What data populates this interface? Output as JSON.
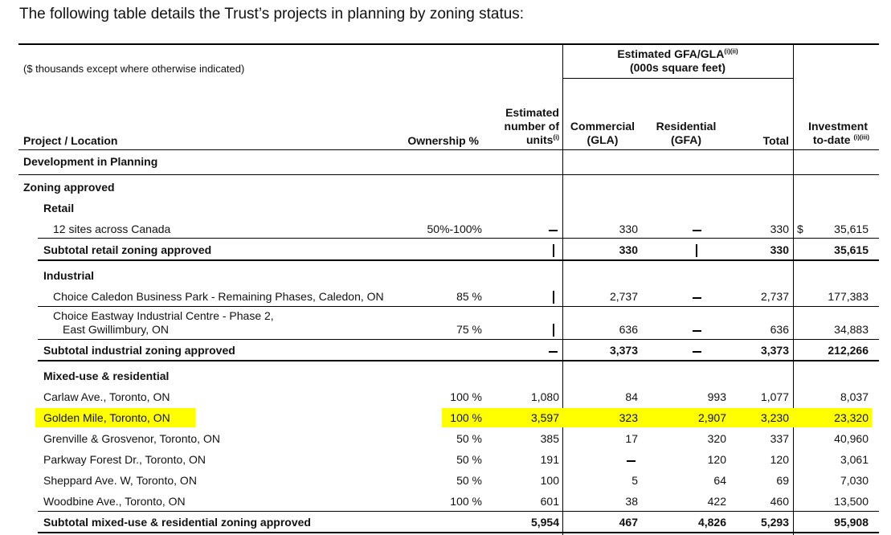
{
  "intro": "The following table details the Trust’s projects in planning by zoning status:",
  "note": "($ thousands except where otherwise indicated)",
  "gfa_header": {
    "line1": "Estimated GFA/GLA",
    "sup": "(i)(ii)",
    "line2": "(000s square feet)"
  },
  "columns": {
    "project": "Project / Location",
    "ownership": "Ownership %",
    "units_1": "Estimated",
    "units_2": "number of",
    "units_3": "units",
    "units_sup": "(i)",
    "commercial_1": "Commercial",
    "commercial_2": "(GLA)",
    "residential_1": "Residential",
    "residential_2": "(GFA)",
    "total": "Total",
    "investment_1": "Investment",
    "investment_2": "to-date",
    "investment_sup": "(i)(iii)"
  },
  "sections": {
    "development": "Development in Planning",
    "zoning": "Zoning approved",
    "retail": "Retail",
    "industrial": "Industrial",
    "mixed": "Mixed-use & residential"
  },
  "currency": "$",
  "retail_rows": [
    {
      "name": "12 sites across Canada",
      "own": "50%-100%",
      "units": "",
      "com": "330",
      "res": "",
      "tot": "330",
      "inv": "35,615"
    }
  ],
  "retail_subtotal": {
    "name": "Subtotal retail zoning approved",
    "units": "",
    "com": "330",
    "res": "",
    "tot": "330",
    "inv": "35,615"
  },
  "industrial_rows": [
    {
      "name": "Choice Caledon Business Park - Remaining Phases, Caledon, ON",
      "own": "85 %",
      "units": "",
      "com": "2,737",
      "res": "",
      "tot": "2,737",
      "inv": "177,383"
    },
    {
      "name": "Choice Eastway Industrial Centre - Phase 2,",
      "name2": "East Gwillimbury, ON",
      "own": "75 %",
      "units": "",
      "com": "636",
      "res": "",
      "tot": "636",
      "inv": "34,883"
    }
  ],
  "industrial_subtotal": {
    "name": "Subtotal industrial zoning approved",
    "units": "",
    "com": "3,373",
    "res": "",
    "tot": "3,373",
    "inv": "212,266"
  },
  "mixed_rows": [
    {
      "name": "Carlaw Ave., Toronto, ON",
      "own": "100 %",
      "units": "1,080",
      "com": "84",
      "res": "993",
      "tot": "1,077",
      "inv": "8,037"
    },
    {
      "name": "Golden Mile, Toronto, ON",
      "own": "100 %",
      "units": "3,597",
      "com": "323",
      "res": "2,907",
      "tot": "3,230",
      "inv": "23,320"
    },
    {
      "name": "Grenville & Grosvenor, Toronto, ON",
      "own": "50 %",
      "units": "385",
      "com": "17",
      "res": "320",
      "tot": "337",
      "inv": "40,960"
    },
    {
      "name": "Parkway Forest Dr., Toronto, ON",
      "own": "50 %",
      "units": "191",
      "com": "",
      "res": "120",
      "tot": "120",
      "inv": "3,061"
    },
    {
      "name": "Sheppard Ave. W, Toronto, ON",
      "own": "50 %",
      "units": "100",
      "com": "5",
      "res": "64",
      "tot": "69",
      "inv": "7,030"
    },
    {
      "name": "Woodbine Ave., Toronto, ON",
      "own": "100 %",
      "units": "601",
      "com": "38",
      "res": "422",
      "tot": "460",
      "inv": "13,500"
    }
  ],
  "mixed_subtotal": {
    "name": "Subtotal mixed-use & residential zoning approved",
    "units": "5,954",
    "com": "467",
    "res": "4,826",
    "tot": "5,293",
    "inv": "95,908"
  },
  "highlight_color": "#ffff00"
}
